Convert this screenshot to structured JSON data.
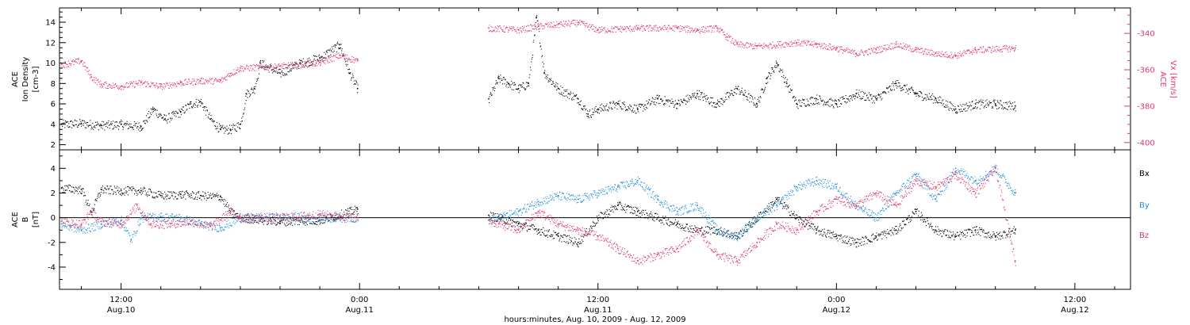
{
  "colors": {
    "black": "#000000",
    "pink": "#e0386a",
    "blue": "#1f8ee0"
  },
  "chart_data": [
    {
      "type": "scatter",
      "panel": "top",
      "xlabel": "hours:minutes, Aug. 10, 2009 - Aug. 12, 2009",
      "x_ticks": [
        {
          "label": "12:00",
          "date": "Aug.10",
          "hours": 12
        },
        {
          "label": "0:00",
          "date": "Aug.11",
          "hours": 24
        },
        {
          "label": "12:00",
          "date": "Aug.11",
          "hours": 36
        },
        {
          "label": "0:00",
          "date": "Aug.12",
          "hours": 48
        },
        {
          "label": "12:00",
          "date": "Aug.12",
          "hours": 60
        }
      ],
      "xlim_hours": [
        8.9,
        62.8
      ],
      "left_axis": {
        "label": [
          "ACE",
          "Ion Density",
          "[cm-3]"
        ],
        "ylim": [
          1.5,
          15.4
        ],
        "ticks": [
          2,
          4,
          6,
          8,
          10,
          12,
          14
        ]
      },
      "right_axis": {
        "label": [
          "ACE",
          "Vx [km/s]"
        ],
        "ylim": [
          -404,
          -326
        ],
        "ticks": [
          -340,
          -360,
          -380,
          -400
        ]
      },
      "series": [
        {
          "axis": "left",
          "color": "#000000",
          "segments": [
            [
              [
                9,
                4.0
              ],
              [
                10,
                4.1
              ],
              [
                11,
                3.9
              ],
              [
                12,
                4.0
              ],
              [
                13,
                3.8
              ],
              [
                13.6,
                5.5
              ],
              [
                14.2,
                4.5
              ],
              [
                15,
                5.2
              ],
              [
                15.5,
                6.0
              ],
              [
                16,
                6.2
              ],
              [
                16.5,
                4.5
              ],
              [
                17,
                3.5
              ],
              [
                17.5,
                3.5
              ],
              [
                18,
                4.0
              ],
              [
                18.3,
                7.0
              ],
              [
                18.7,
                7.5
              ],
              [
                19,
                10.0
              ],
              [
                20,
                9.0
              ],
              [
                21,
                10.0
              ],
              [
                22,
                10.5
              ],
              [
                23,
                11.8
              ],
              [
                23.5,
                9.0
              ],
              [
                23.9,
                7.5
              ]
            ],
            [
              [
                30.5,
                6.5
              ],
              [
                31,
                8.5
              ],
              [
                31.5,
                8.0
              ],
              [
                32,
                7.5
              ],
              [
                32.5,
                8.0
              ],
              [
                32.9,
                14.5
              ],
              [
                33.3,
                9.0
              ],
              [
                34,
                7.5
              ],
              [
                35,
                6.5
              ],
              [
                35.5,
                5.0
              ],
              [
                36,
                5.5
              ],
              [
                37,
                6.0
              ],
              [
                38,
                5.5
              ],
              [
                39,
                6.5
              ],
              [
                40,
                6.0
              ],
              [
                41,
                7.0
              ],
              [
                42,
                6.0
              ],
              [
                43,
                7.5
              ],
              [
                44,
                6.0
              ],
              [
                44.5,
                8.5
              ],
              [
                45,
                10.0
              ],
              [
                45.5,
                8.0
              ],
              [
                46,
                6.0
              ],
              [
                47,
                6.5
              ],
              [
                48,
                6.0
              ],
              [
                49,
                7.0
              ],
              [
                50,
                6.5
              ],
              [
                51,
                8.0
              ],
              [
                52,
                7.0
              ],
              [
                53,
                6.5
              ],
              [
                54,
                5.5
              ],
              [
                55,
                6.0
              ],
              [
                56,
                6.0
              ],
              [
                57,
                5.8
              ]
            ]
          ]
        },
        {
          "axis": "right",
          "color": "#e0386a",
          "segments": [
            [
              [
                9,
                -357
              ],
              [
                10,
                -355
              ],
              [
                10.5,
                -364
              ],
              [
                11,
                -368
              ],
              [
                12,
                -369
              ],
              [
                13,
                -367
              ],
              [
                14,
                -369
              ],
              [
                15,
                -367
              ],
              [
                16,
                -366
              ],
              [
                17,
                -366
              ],
              [
                17.5,
                -362
              ],
              [
                18,
                -359
              ],
              [
                20,
                -358
              ],
              [
                22,
                -356
              ],
              [
                23,
                -352
              ],
              [
                23.9,
                -355
              ]
            ],
            [
              [
                30.5,
                -337
              ],
              [
                32,
                -338
              ],
              [
                33,
                -336
              ],
              [
                34,
                -335
              ],
              [
                35,
                -334
              ],
              [
                36,
                -338
              ],
              [
                38,
                -337
              ],
              [
                40,
                -337
              ],
              [
                41,
                -338
              ],
              [
                42,
                -337
              ],
              [
                42.5,
                -342
              ],
              [
                43,
                -346
              ],
              [
                44,
                -347
              ],
              [
                46,
                -345
              ],
              [
                47,
                -346
              ],
              [
                48,
                -348
              ],
              [
                49,
                -351
              ],
              [
                50,
                -349
              ],
              [
                51,
                -346
              ],
              [
                52,
                -349
              ],
              [
                53,
                -351
              ],
              [
                54,
                -352
              ],
              [
                55,
                -349
              ],
              [
                57,
                -348
              ]
            ]
          ]
        }
      ]
    },
    {
      "type": "scatter",
      "panel": "bottom",
      "left_axis": {
        "label": [
          "ACE",
          "B",
          "[nT]"
        ],
        "ylim": [
          -5.8,
          5.5
        ],
        "ticks": [
          -4,
          -2,
          0,
          2,
          4
        ]
      },
      "zero_line": true,
      "legend": {
        "placement": "right",
        "entries": [
          "Bx",
          "By",
          "Bz"
        ]
      },
      "series": [
        {
          "name": "Bx",
          "color": "#000000",
          "segments": [
            [
              [
                9,
                2.4
              ],
              [
                10,
                2.3
              ],
              [
                10.5,
                0.5
              ],
              [
                11,
                2.3
              ],
              [
                12,
                2.2
              ],
              [
                13,
                2.2
              ],
              [
                14,
                1.8
              ],
              [
                15,
                1.9
              ],
              [
                16,
                1.8
              ],
              [
                17,
                1.7
              ],
              [
                17.5,
                0.5
              ],
              [
                18,
                0.0
              ],
              [
                20,
                -0.3
              ],
              [
                22,
                -0.2
              ],
              [
                23.9,
                0.7
              ]
            ],
            [
              [
                30.5,
                0.2
              ],
              [
                31,
                0.0
              ],
              [
                32,
                -0.5
              ],
              [
                33,
                -1.0
              ],
              [
                34,
                -1.5
              ],
              [
                35,
                -2.0
              ],
              [
                36,
                0.0
              ],
              [
                37,
                1.0
              ],
              [
                38,
                0.5
              ],
              [
                39,
                0.0
              ],
              [
                40,
                -0.5
              ],
              [
                41,
                -1.0
              ],
              [
                42,
                -1.0
              ],
              [
                43,
                -1.5
              ],
              [
                44,
                0.0
              ],
              [
                45,
                1.5
              ],
              [
                46,
                0.0
              ],
              [
                47,
                -1.0
              ],
              [
                48,
                -1.5
              ],
              [
                49,
                -2.0
              ],
              [
                50,
                -1.5
              ],
              [
                51,
                -1.0
              ],
              [
                52,
                0.5
              ],
              [
                53,
                -1.0
              ],
              [
                54,
                -1.5
              ],
              [
                55,
                -1.0
              ],
              [
                56,
                -1.5
              ],
              [
                57,
                -1.0
              ]
            ]
          ]
        },
        {
          "name": "By",
          "color": "#1f8ee0",
          "segments": [
            [
              [
                9,
                -0.5
              ],
              [
                10,
                -1.0
              ],
              [
                11,
                -0.5
              ],
              [
                12,
                -0.2
              ],
              [
                12.5,
                -1.8
              ],
              [
                13,
                0.0
              ],
              [
                14,
                0.1
              ],
              [
                15,
                0.0
              ],
              [
                16,
                -0.5
              ],
              [
                17,
                -0.8
              ],
              [
                18,
                0.0
              ],
              [
                20,
                0.1
              ],
              [
                22,
                0.0
              ],
              [
                23.9,
                0.0
              ]
            ],
            [
              [
                30.5,
                -0.2
              ],
              [
                31,
                0.0
              ],
              [
                32,
                0.5
              ],
              [
                33,
                1.3
              ],
              [
                34,
                1.8
              ],
              [
                35,
                1.5
              ],
              [
                36,
                2.0
              ],
              [
                37,
                2.5
              ],
              [
                38,
                3.0
              ],
              [
                39,
                1.5
              ],
              [
                40,
                0.5
              ],
              [
                41,
                1.0
              ],
              [
                42,
                -1.0
              ],
              [
                43,
                -1.5
              ],
              [
                44,
                0.0
              ],
              [
                45,
                1.0
              ],
              [
                46,
                2.5
              ],
              [
                47,
                3.0
              ],
              [
                48,
                2.5
              ],
              [
                49,
                1.0
              ],
              [
                50,
                0.0
              ],
              [
                51,
                2.0
              ],
              [
                52,
                3.5
              ],
              [
                53,
                1.5
              ],
              [
                54,
                4.0
              ],
              [
                55,
                3.0
              ],
              [
                56,
                4.0
              ],
              [
                57,
                2.0
              ]
            ]
          ]
        },
        {
          "name": "Bz",
          "color": "#e0386a",
          "segments": [
            [
              [
                9,
                -0.3
              ],
              [
                10,
                -0.5
              ],
              [
                10.5,
                0.5
              ],
              [
                11,
                -0.3
              ],
              [
                12,
                -0.5
              ],
              [
                12.8,
                1.0
              ],
              [
                13.5,
                -0.5
              ],
              [
                14.5,
                -0.5
              ],
              [
                15.5,
                -0.3
              ],
              [
                16.5,
                -0.7
              ],
              [
                17.5,
                0.5
              ],
              [
                18,
                0.0
              ],
              [
                20,
                0.0
              ],
              [
                22,
                0.3
              ],
              [
                23.9,
                0.0
              ]
            ],
            [
              [
                30.5,
                -0.2
              ],
              [
                31,
                -0.5
              ],
              [
                32,
                -1.0
              ],
              [
                33,
                0.5
              ],
              [
                34,
                -0.5
              ],
              [
                35,
                -1.0
              ],
              [
                36,
                -1.5
              ],
              [
                37,
                -2.5
              ],
              [
                38,
                -3.5
              ],
              [
                39,
                -3.0
              ],
              [
                40,
                -2.5
              ],
              [
                41,
                -1.0
              ],
              [
                42,
                -3.0
              ],
              [
                43,
                -3.5
              ],
              [
                44,
                -2.0
              ],
              [
                45,
                -0.5
              ],
              [
                46,
                -1.0
              ],
              [
                47,
                0.5
              ],
              [
                48,
                1.5
              ],
              [
                49,
                1.0
              ],
              [
                50,
                2.0
              ],
              [
                51,
                1.0
              ],
              [
                52,
                3.0
              ],
              [
                53,
                2.5
              ],
              [
                54,
                3.5
              ],
              [
                55,
                2.0
              ],
              [
                56,
                4.0
              ],
              [
                57,
                -3.5
              ]
            ]
          ]
        }
      ]
    }
  ]
}
